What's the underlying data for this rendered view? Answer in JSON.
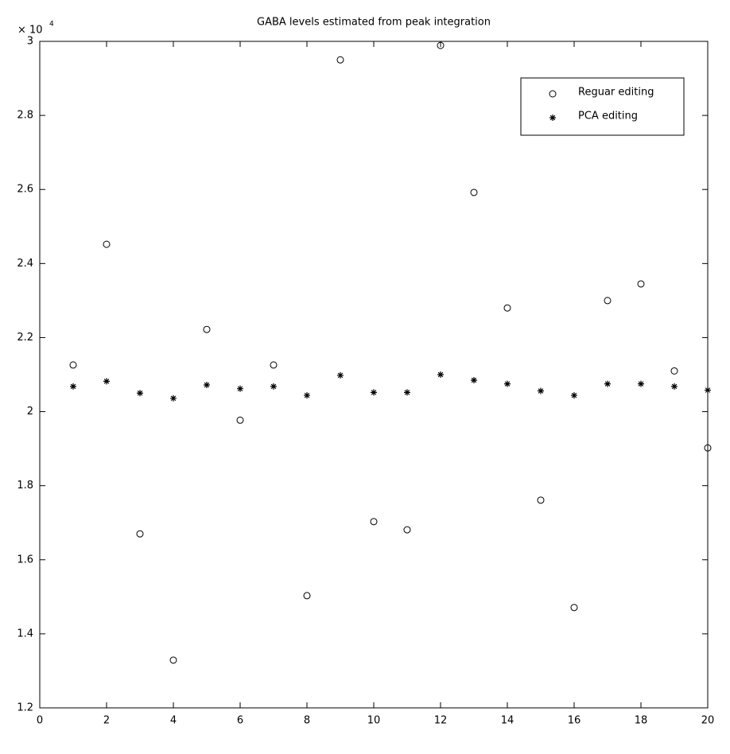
{
  "chart_data": {
    "type": "scatter",
    "title": "GABA levels estimated from peak integration",
    "axis_multiplier": {
      "base": "× 10",
      "exponent": "4"
    },
    "x": [
      1,
      2,
      3,
      4,
      5,
      6,
      7,
      8,
      9,
      10,
      11,
      12,
      13,
      14,
      15,
      16,
      17,
      18,
      19,
      20
    ],
    "series": [
      {
        "name": "Reguar editing",
        "marker": "circle",
        "color": "#000000",
        "values": [
          2.126,
          2.452,
          1.67,
          1.329,
          2.222,
          1.977,
          2.126,
          1.503,
          2.95,
          1.703,
          1.681,
          2.989,
          2.592,
          2.28,
          1.761,
          1.471,
          2.3,
          2.345,
          2.11,
          1.902
        ]
      },
      {
        "name": "PCA editing",
        "marker": "star",
        "color": "#000000",
        "values": [
          2.068,
          2.082,
          2.05,
          2.036,
          2.072,
          2.062,
          2.068,
          2.044,
          2.098,
          2.052,
          2.052,
          2.1,
          2.085,
          2.075,
          2.056,
          2.044,
          2.075,
          2.075,
          2.068,
          2.058
        ]
      }
    ],
    "xlim": [
      0,
      20
    ],
    "xticks": [
      0,
      2,
      4,
      6,
      8,
      10,
      12,
      14,
      16,
      18,
      20
    ],
    "ylim": [
      1.2,
      3
    ],
    "yticks": [
      1.2,
      1.4,
      1.6,
      1.8,
      2,
      2.2,
      2.4,
      2.6,
      2.8,
      3
    ],
    "grid": false,
    "legend": "upper-right"
  }
}
